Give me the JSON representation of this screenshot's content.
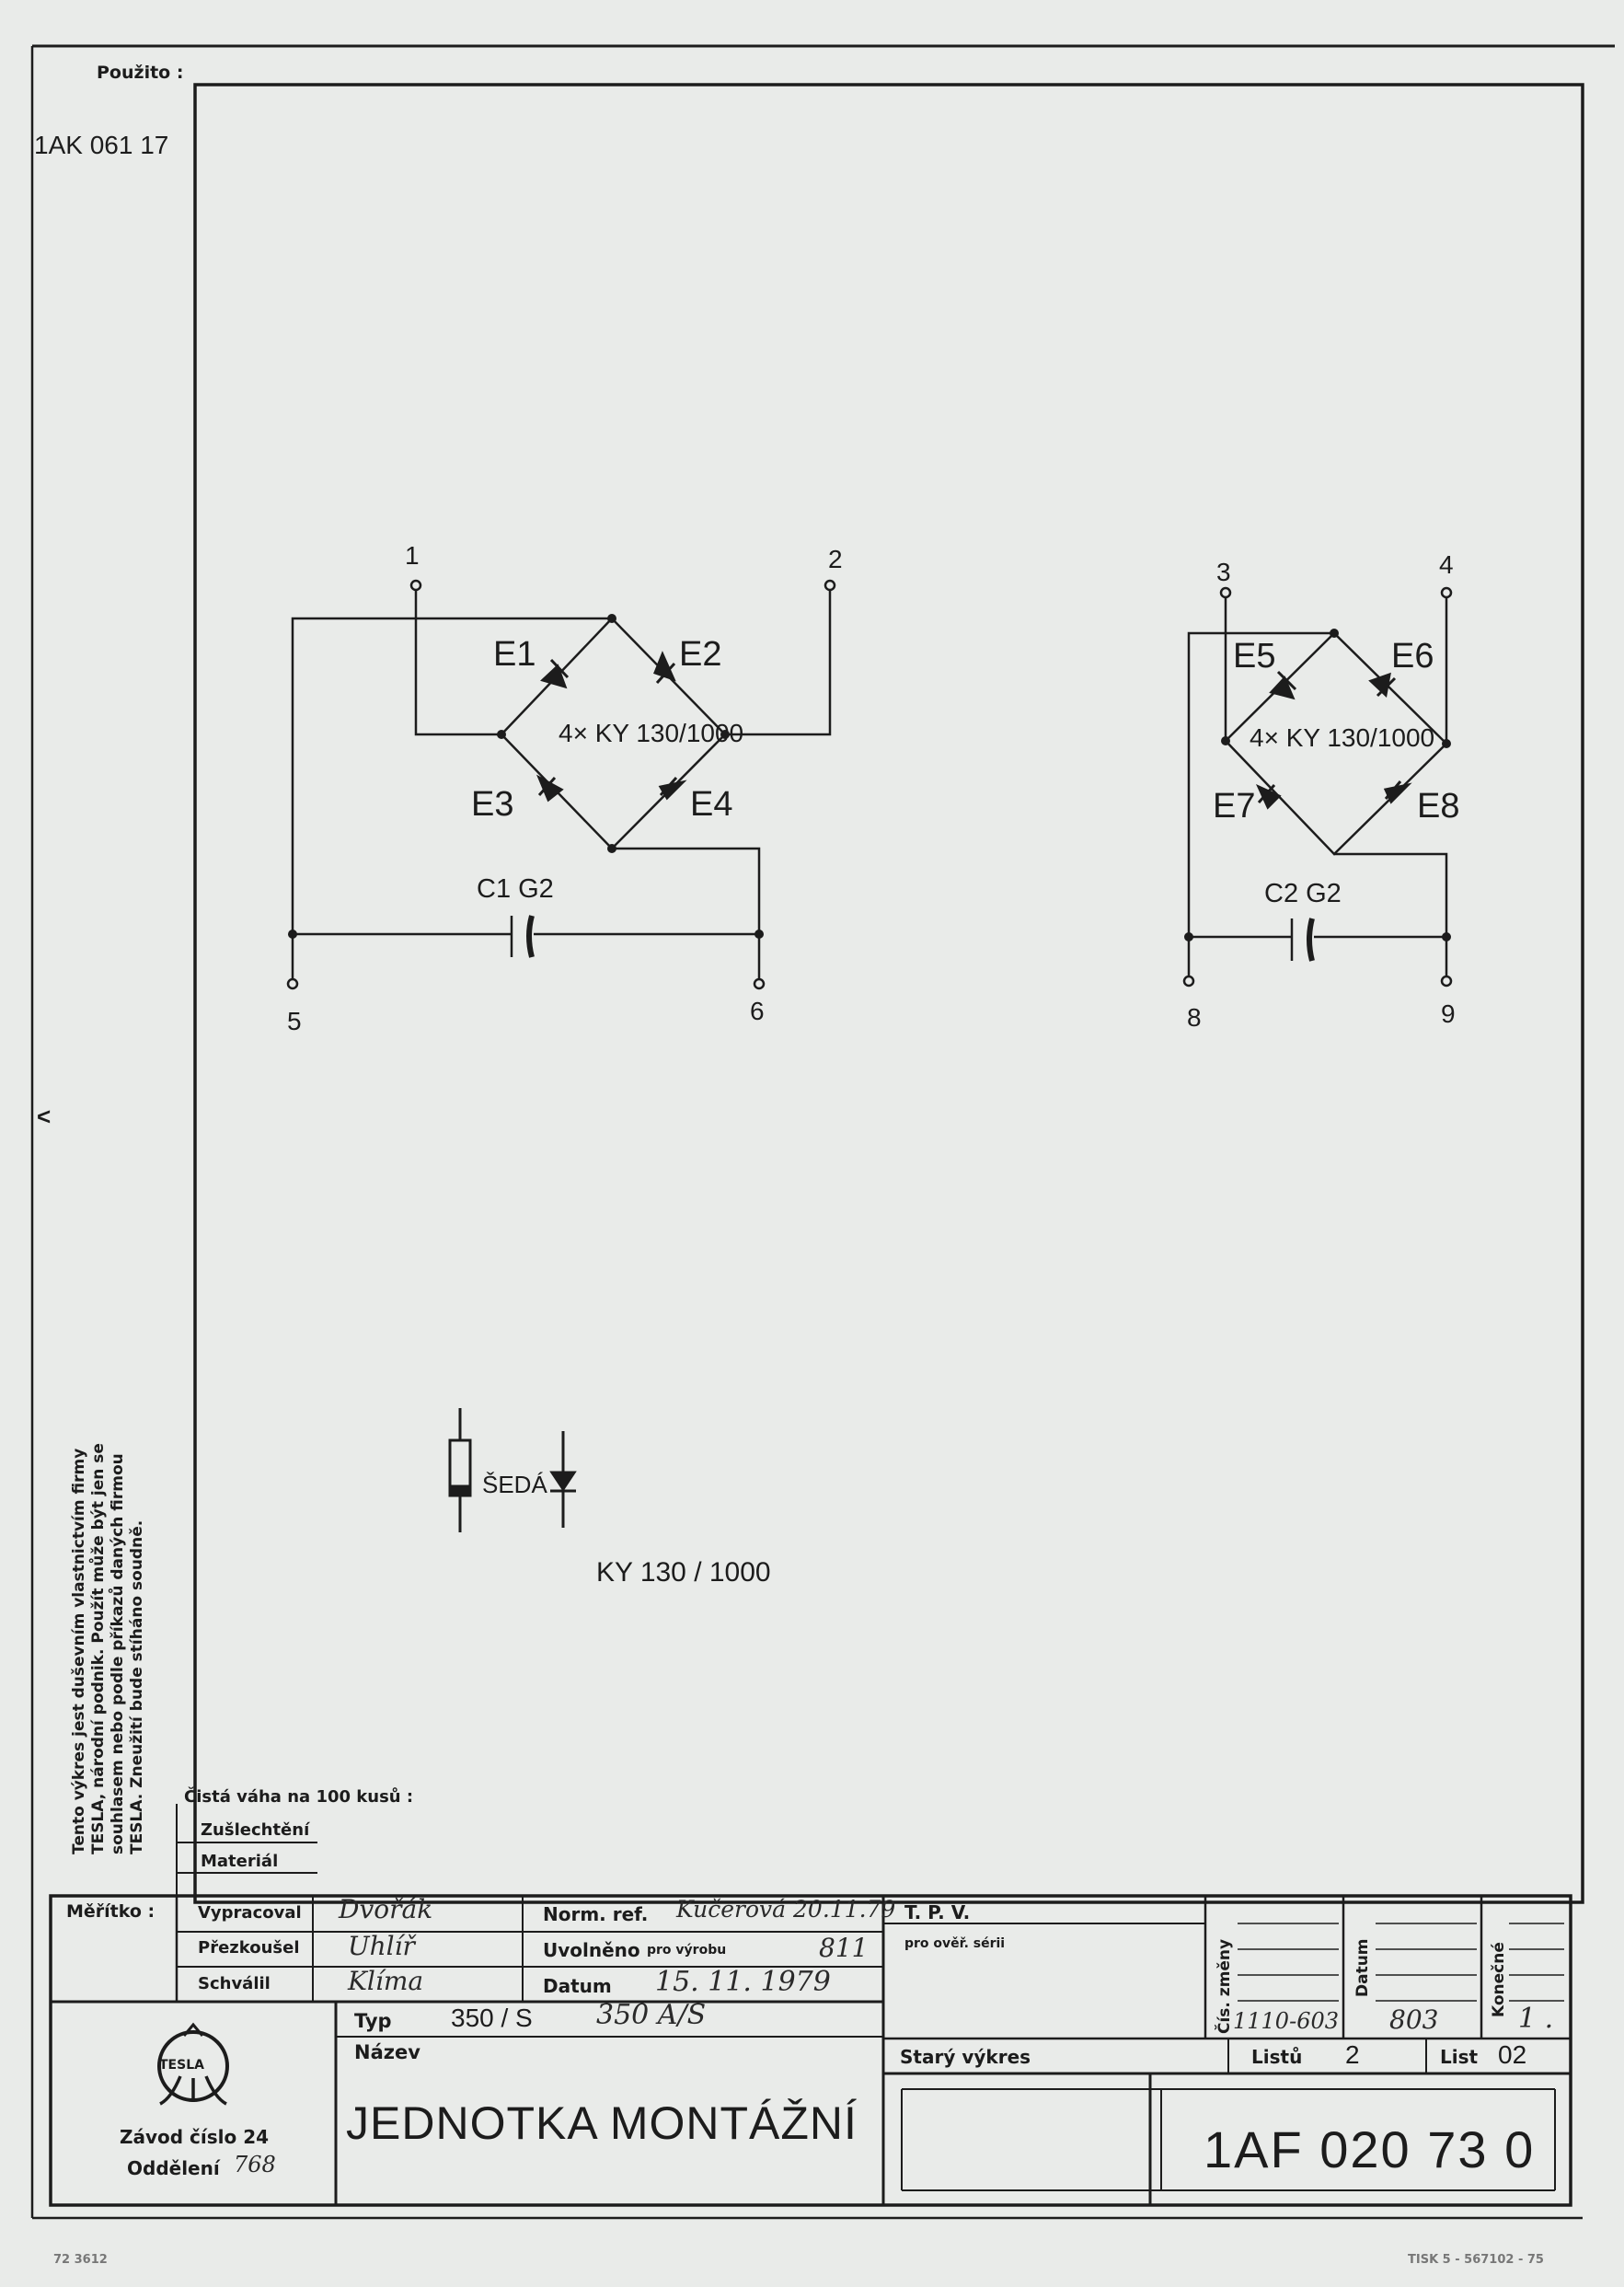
{
  "margin": {
    "used_label": "Použito :",
    "used_value": "1AK 061 17",
    "arrow": "<",
    "note_lines": [
      "Tento výkres jest duševním vlastnictvím firmy",
      "TESLA, národní podnik. Použít může být jen se",
      "souhlasem nebo podle příkazů daných firmou",
      "TESLA. Zneužití bude stíháno soudně."
    ]
  },
  "schematic": {
    "bridge_1": {
      "terminals": [
        "1",
        "2",
        "5",
        "6"
      ],
      "diodes": [
        "E1",
        "E2",
        "E3",
        "E4"
      ],
      "part_label": "4× KY 130/1000",
      "capacitor_label": "C1  G2"
    },
    "bridge_2": {
      "terminals": [
        "3",
        "4",
        "8",
        "9"
      ],
      "diodes": [
        "E5",
        "E6",
        "E7",
        "E8"
      ],
      "part_label": "4× KY 130/1000",
      "capacitor_label": "C2  G2"
    },
    "legend_color": "ŠEDÁ",
    "legend_part": "KY  130 / 1000"
  },
  "title_block": {
    "net_weight_label": "Čistá váha na 100 kusů :",
    "finishing_label": "Zušlechtění",
    "material_label": "Materiál",
    "scale_label": "Měřítko :",
    "drawn_label": "Vypracoval",
    "drawn_sig": "Dvořák",
    "checked_label": "Přezkoušel",
    "checked_sig": "Uhlíř",
    "approved_label": "Schválil",
    "approved_sig": "Klíma",
    "norm_label": "Norm. ref.",
    "norm_value": "Kučerová 20.11.79",
    "released_label": "Uvolněno",
    "released_sub": "pro výrobu",
    "released_value": "811",
    "date_label": "Datum",
    "date_value": "15. 11. 1979",
    "tpv_label": "T. P. V.",
    "tpv_sub": "pro ověř. sérii",
    "change_no_label": "Čís. změny",
    "change_no_value": "1110-603",
    "change_date_label": "Datum",
    "change_date_value": "803",
    "final_label": "Konečné",
    "final_value": "1 .",
    "type_label": "Typ",
    "type_value": "350 / S",
    "type_hand": "350 A/S",
    "name_label": "Název",
    "name_value": "JEDNOTKA MONTÁŽNÍ",
    "old_drawing_label": "Starý výkres",
    "sheet_label": "Listů",
    "sheet_value": "2",
    "sheet_no_label": "List",
    "sheet_no_value": "02",
    "logo_text": "TESLA",
    "plant_line": "Závod číslo 24",
    "dept_label": "Oddělení",
    "dept_value": "768",
    "drawing_number": "1AF 020 73 0"
  },
  "footer": {
    "left_code": "72 3612",
    "right_code": "TISK 5 - 567102 - 75"
  }
}
